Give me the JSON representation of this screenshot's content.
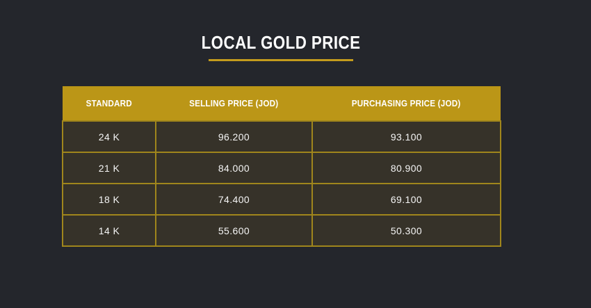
{
  "theme": {
    "background": "#24262c",
    "gold_header": "#bb9617",
    "gold_border": "#a0861c",
    "gold_underline": "#c49c1d",
    "row_background": "#363229",
    "text_color": "#ffffff"
  },
  "title": {
    "text": "LOCAL GOLD PRICE"
  },
  "table": {
    "headers": [
      "STANDARD",
      "SELLING PRICE (JOD)",
      "PURCHASING PRICE (JOD)"
    ],
    "rows": [
      {
        "standard": "24 K",
        "selling": "96.200",
        "purchasing": "93.100"
      },
      {
        "standard": "21 K",
        "selling": "84.000",
        "purchasing": "80.900"
      },
      {
        "standard": "18 K",
        "selling": "74.400",
        "purchasing": "69.100"
      },
      {
        "standard": "14 K",
        "selling": "55.600",
        "purchasing": "50.300"
      }
    ]
  }
}
